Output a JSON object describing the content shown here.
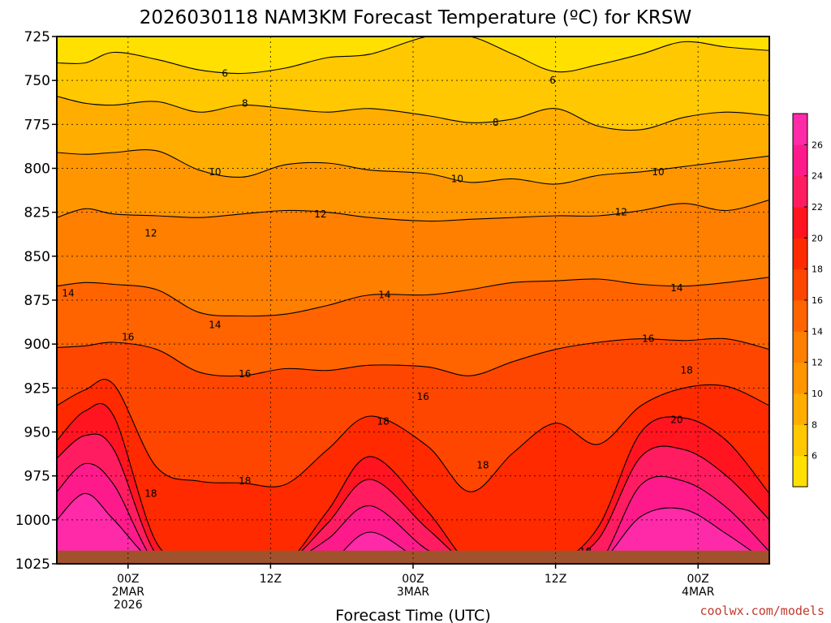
{
  "chart_data": {
    "type": "heatmap",
    "title": "2026030118 NAM3KM Forecast Temperature (ºC) for KRSW",
    "xlabel": "Forecast Time (UTC)",
    "ylabel": "",
    "credit": "coolwx.com/models",
    "y_levels_hpa": [
      725,
      750,
      775,
      800,
      825,
      850,
      875,
      900,
      925,
      950,
      975,
      1000,
      1025
    ],
    "ylim_hpa": [
      725,
      1025
    ],
    "x_range_hours": [
      -5,
      45
    ],
    "x_ticks": [
      {
        "hour": 0,
        "line1": "00Z",
        "line2": "2MAR",
        "line3": "2026"
      },
      {
        "hour": 10,
        "line1": "12Z",
        "line2": "",
        "line3": ""
      },
      {
        "hour": 20,
        "line1": "00Z",
        "line2": "3MAR",
        "line3": ""
      },
      {
        "hour": 30,
        "line1": "12Z",
        "line2": "",
        "line3": ""
      },
      {
        "hour": 40,
        "line1": "00Z",
        "line2": "4MAR",
        "line3": ""
      }
    ],
    "colorbar": {
      "levels": [
        6,
        8,
        10,
        12,
        14,
        16,
        18,
        20,
        22,
        24,
        26
      ],
      "colors": [
        "#ffe000",
        "#ffc800",
        "#ffae00",
        "#ff9600",
        "#ff7f00",
        "#ff6400",
        "#ff4600",
        "#ff2a00",
        "#ff1420",
        "#ff1c60",
        "#ff1a8c",
        "#ff2aa8"
      ]
    },
    "contours": [
      {
        "value": 6,
        "color": "#ffc800",
        "p": [
          740,
          740,
          734,
          738,
          744,
          746,
          743,
          737,
          735,
          725,
          725,
          735,
          745,
          741,
          735,
          728,
          731,
          733
        ]
      },
      {
        "value": 8,
        "color": "#ffae00",
        "p": [
          759,
          763,
          764,
          762,
          768,
          764,
          766,
          768,
          766,
          770,
          774,
          772,
          766,
          776,
          778,
          771,
          768,
          770
        ]
      },
      {
        "value": 10,
        "color": "#ff9600",
        "p": [
          791,
          792,
          791,
          790,
          801,
          805,
          798,
          797,
          801,
          803,
          808,
          806,
          809,
          804,
          802,
          799,
          796,
          793
        ]
      },
      {
        "value": 12,
        "color": "#ff7f00",
        "p": [
          828,
          823,
          826,
          827,
          828,
          826,
          824,
          825,
          828,
          830,
          829,
          828,
          827,
          827,
          824,
          820,
          824,
          818
        ]
      },
      {
        "value": 14,
        "color": "#ff6400",
        "p": [
          867,
          865,
          866,
          869,
          882,
          884,
          883,
          878,
          872,
          872,
          869,
          865,
          864,
          863,
          866,
          867,
          865,
          862
        ]
      },
      {
        "value": 16,
        "color": "#ff4600",
        "p": [
          902,
          901,
          899,
          903,
          916,
          918,
          914,
          915,
          912,
          913,
          918,
          910,
          903,
          899,
          897,
          898,
          897,
          903
        ]
      },
      {
        "value": 18,
        "color": "#ff2a00",
        "p": [
          935,
          926,
          923,
          970,
          978,
          979,
          980,
          960,
          941,
          958,
          984,
          962,
          945,
          957,
          935,
          925,
          924,
          935
        ]
      },
      {
        "value": 20,
        "color": "#ff1420",
        "p": [
          955,
          938,
          941,
          1013,
          1025,
          1025,
          1025,
          995,
          964,
          995,
          1025,
          1025,
          1025,
          1004,
          950,
          942,
          955,
          985
        ]
      },
      {
        "value": 22,
        "color": "#ff1c60",
        "p": [
          965,
          952,
          960,
          1020,
          1025,
          1025,
          1025,
          1002,
          977,
          1005,
          1025,
          1025,
          1025,
          1011,
          964,
          960,
          975,
          1000
        ]
      },
      {
        "value": 24,
        "color": "#ff1a8c",
        "p": [
          984,
          968,
          980,
          1025,
          1025,
          1025,
          1025,
          1011,
          992,
          1017,
          1025,
          1025,
          1025,
          1025,
          980,
          978,
          993,
          1018
        ]
      },
      {
        "value": 26,
        "color": "#ff2aa8",
        "p": [
          1000,
          985,
          1000,
          1025,
          1025,
          1025,
          1025,
          1025,
          1007,
          1025,
          1025,
          1025,
          1025,
          1025,
          998,
          994,
          1008,
          1025
        ]
      }
    ],
    "contour_x_hours": [
      -5,
      -3,
      -1,
      2,
      5,
      8,
      11,
      14,
      17,
      21,
      24,
      27,
      30,
      33,
      36,
      39,
      42,
      45
    ],
    "contour_labels": [
      {
        "text": "6",
        "hour": 6.8,
        "hpa": 746
      },
      {
        "text": "6",
        "hour": 29.8,
        "hpa": 750
      },
      {
        "text": "8",
        "hour": 8.2,
        "hpa": 763
      },
      {
        "text": "8",
        "hour": 25.8,
        "hpa": 774
      },
      {
        "text": "10",
        "hour": 6.1,
        "hpa": 802
      },
      {
        "text": "10",
        "hour": 23.1,
        "hpa": 806
      },
      {
        "text": "10",
        "hour": 37.2,
        "hpa": 802
      },
      {
        "text": "12",
        "hour": 1.6,
        "hpa": 837
      },
      {
        "text": "12",
        "hour": 13.5,
        "hpa": 826
      },
      {
        "text": "12",
        "hour": 34.6,
        "hpa": 825
      },
      {
        "text": "14",
        "hour": -4.2,
        "hpa": 871
      },
      {
        "text": "14",
        "hour": 6.1,
        "hpa": 889
      },
      {
        "text": "14",
        "hour": 18.0,
        "hpa": 872
      },
      {
        "text": "14",
        "hour": 38.5,
        "hpa": 868
      },
      {
        "text": "16",
        "hour": 0.0,
        "hpa": 896
      },
      {
        "text": "16",
        "hour": 8.2,
        "hpa": 917
      },
      {
        "text": "16",
        "hour": 20.7,
        "hpa": 930
      },
      {
        "text": "16",
        "hour": 36.5,
        "hpa": 897
      },
      {
        "text": "18",
        "hour": 1.6,
        "hpa": 985
      },
      {
        "text": "18",
        "hour": 8.2,
        "hpa": 978
      },
      {
        "text": "18",
        "hour": 17.9,
        "hpa": 944
      },
      {
        "text": "18",
        "hour": 24.9,
        "hpa": 969
      },
      {
        "text": "18",
        "hour": 32.1,
        "hpa": 1018
      },
      {
        "text": "18",
        "hour": 39.2,
        "hpa": 915
      },
      {
        "text": "20",
        "hour": 38.5,
        "hpa": 943
      }
    ]
  }
}
